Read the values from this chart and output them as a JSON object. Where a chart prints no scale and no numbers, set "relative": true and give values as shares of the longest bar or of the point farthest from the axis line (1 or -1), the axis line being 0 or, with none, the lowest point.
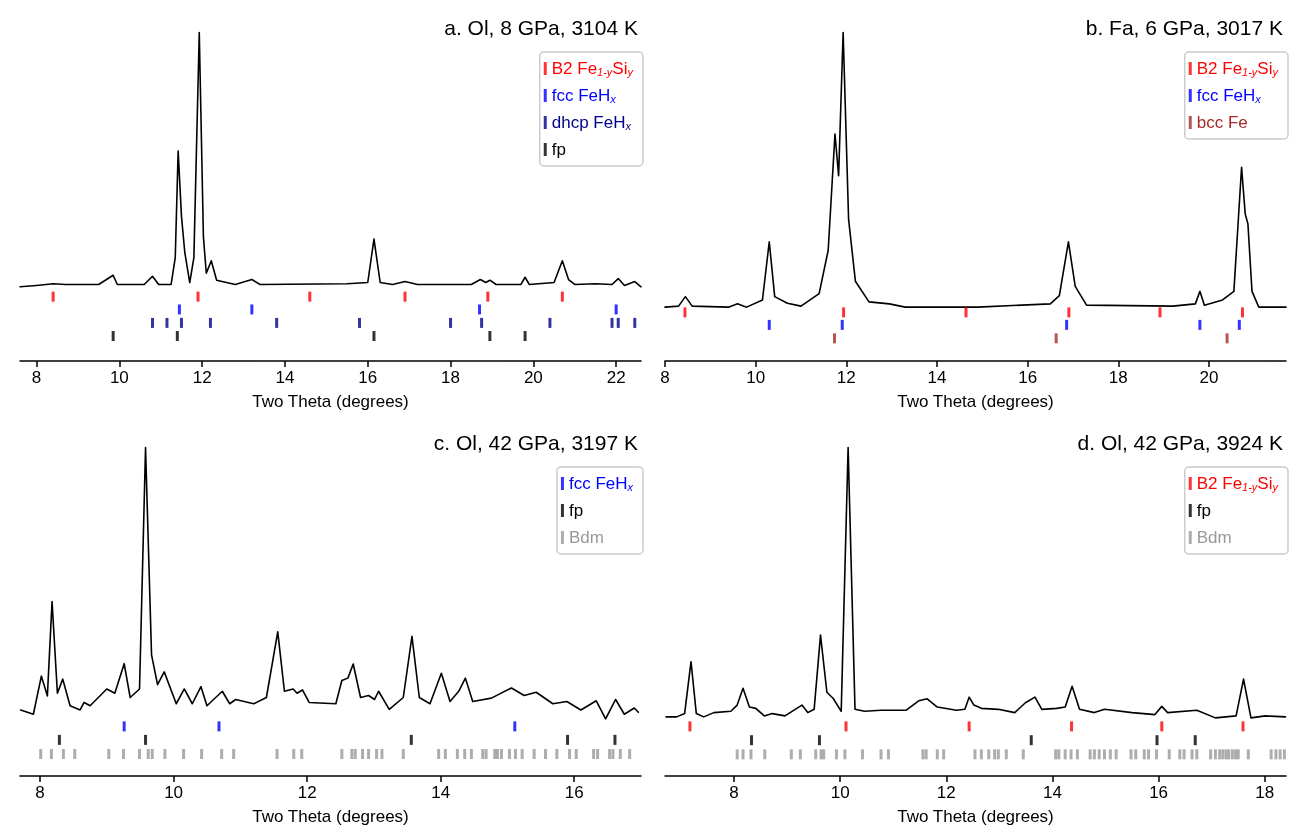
{
  "chart_data": [
    {
      "type": "line",
      "title": "a. Ol, 8 GPa, 3104 K",
      "xlabel": "Two Theta (degrees)",
      "relative": true,
      "xlim": [
        7.6,
        22.6
      ],
      "xticks": [
        8,
        10,
        12,
        14,
        16,
        18,
        20,
        22
      ],
      "legend": "top right",
      "tick_labels": "x",
      "series": [
        {
          "color": "#000000",
          "marker": "none",
          "x": [
            7.6,
            8.0,
            8.4,
            8.7,
            9.5,
            9.85,
            9.95,
            10.6,
            10.8,
            10.95,
            11.25,
            11.35,
            11.42,
            11.5,
            11.58,
            11.7,
            11.8,
            11.93,
            12.03,
            12.1,
            12.22,
            12.35,
            12.8,
            13.2,
            13.4,
            15.5,
            16.0,
            16.15,
            16.3,
            16.6,
            16.9,
            17.2,
            18.5,
            18.72,
            18.85,
            18.95,
            19.1,
            19.7,
            19.8,
            19.9,
            20.5,
            20.7,
            20.85,
            21.0,
            21.5,
            21.9,
            22.05,
            22.2,
            22.45,
            22.6
          ],
          "values": [
            0.226,
            0.23,
            0.235,
            0.233,
            0.233,
            0.261,
            0.233,
            0.233,
            0.258,
            0.233,
            0.233,
            0.315,
            0.639,
            0.441,
            0.331,
            0.239,
            0.315,
            1.0,
            0.378,
            0.267,
            0.305,
            0.246,
            0.233,
            0.248,
            0.233,
            0.235,
            0.239,
            0.371,
            0.239,
            0.233,
            0.242,
            0.233,
            0.233,
            0.248,
            0.239,
            0.246,
            0.233,
            0.233,
            0.255,
            0.233,
            0.239,
            0.305,
            0.248,
            0.233,
            0.235,
            0.233,
            0.251,
            0.23,
            0.242,
            0.226
          ]
        },
        {
          "type": "scatter",
          "name": "B2 Fe$_{1-y}$Si$_{y}$",
          "color": "#ff0000",
          "x": [
            8.4,
            11.9,
            14.6,
            16.9,
            18.9,
            20.7
          ],
          "values": [
            0.196,
            0.196,
            0.196,
            0.196,
            0.196,
            0.196
          ]
        },
        {
          "type": "scatter",
          "name": "fcc FeH$_{x}$",
          "color": "#0000ff",
          "x": [
            11.45,
            13.2,
            18.7,
            22.0
          ],
          "values": [
            0.157,
            0.157,
            0.157,
            0.157
          ]
        },
        {
          "type": "scatter",
          "name": "dhcp FeH$_{x}$",
          "color": "#00008b",
          "x": [
            10.8,
            11.15,
            11.5,
            12.2,
            13.8,
            15.8,
            18.0,
            18.75,
            20.4,
            21.9,
            22.05,
            22.45
          ],
          "values": [
            0.116,
            0.116,
            0.116,
            0.116,
            0.116,
            0.116,
            0.116,
            0.116,
            0.116,
            0.116,
            0.116,
            0.116
          ]
        },
        {
          "type": "scatter",
          "name": "fp",
          "color": "#000000",
          "x": [
            9.85,
            11.4,
            16.15,
            18.95,
            19.8
          ],
          "values": [
            0.076,
            0.076,
            0.076,
            0.076,
            0.076
          ]
        }
      ]
    },
    {
      "type": "line",
      "title": "b. Fa, 6 GPa, 3017 K",
      "xlabel": "Two Theta (degrees)",
      "relative": true,
      "xlim": [
        8,
        21.7
      ],
      "xticks": [
        8,
        10,
        12,
        14,
        16,
        18,
        20
      ],
      "legend": "top right",
      "tick_labels": "x",
      "series": [
        {
          "color": "#000000",
          "marker": "none",
          "x": [
            8.0,
            8.3,
            8.45,
            8.6,
            9.4,
            9.6,
            9.8,
            10.15,
            10.3,
            10.42,
            10.7,
            11.0,
            11.4,
            11.6,
            11.75,
            11.83,
            11.93,
            12.05,
            12.2,
            12.5,
            12.95,
            13.3,
            14.9,
            16.5,
            16.7,
            16.9,
            17.05,
            17.3,
            19.2,
            19.7,
            19.8,
            19.9,
            20.3,
            20.55,
            20.72,
            20.8,
            20.86,
            20.95,
            21.1,
            21.7
          ],
          "values": [
            0.164,
            0.167,
            0.196,
            0.167,
            0.164,
            0.174,
            0.164,
            0.186,
            0.363,
            0.196,
            0.176,
            0.167,
            0.205,
            0.337,
            0.691,
            0.564,
            1.0,
            0.432,
            0.243,
            0.18,
            0.174,
            0.164,
            0.164,
            0.174,
            0.199,
            0.363,
            0.227,
            0.17,
            0.167,
            0.174,
            0.212,
            0.17,
            0.186,
            0.212,
            0.59,
            0.448,
            0.417,
            0.212,
            0.164,
            0.164
          ]
        },
        {
          "type": "scatter",
          "name": "B2 Fe$_{1-y}$Si$_{y}$",
          "color": "#ff0000",
          "x": [
            8.44,
            11.94,
            14.64,
            16.91,
            18.92,
            20.74
          ],
          "values": [
            0.148,
            0.148,
            0.148,
            0.148,
            0.148,
            0.148
          ]
        },
        {
          "type": "scatter",
          "name": "fcc FeH$_{x}$",
          "color": "#0000ff",
          "x": [
            10.3,
            11.91,
            16.86,
            19.8,
            20.67
          ],
          "values": [
            0.11,
            0.11,
            0.11,
            0.11,
            0.11
          ]
        },
        {
          "type": "scatter",
          "name": "bcc Fe",
          "color": "#a52a2a",
          "x": [
            11.74,
            16.63,
            20.4
          ],
          "values": [
            0.069,
            0.069,
            0.069
          ]
        }
      ]
    },
    {
      "type": "line",
      "title": "c. Ol, 42 GPa, 3197 K",
      "xlabel": "Two Theta (degrees)",
      "relative": true,
      "xlim": [
        7.7,
        17.0
      ],
      "xticks": [
        8,
        10,
        12,
        14,
        16
      ],
      "legend": "top right",
      "tick_labels": "x",
      "series": [
        {
          "color": "#000000",
          "marker": "none",
          "x": [
            7.71,
            7.9,
            8.02,
            8.11,
            8.18,
            8.26,
            8.34,
            8.45,
            8.6,
            8.66,
            8.75,
            9.0,
            9.12,
            9.26,
            9.35,
            9.49,
            9.58,
            9.67,
            9.76,
            9.86,
            10.04,
            10.16,
            10.28,
            10.41,
            10.5,
            10.73,
            10.84,
            10.93,
            11.2,
            11.39,
            11.56,
            11.66,
            11.79,
            11.85,
            11.93,
            12.03,
            12.43,
            12.52,
            12.61,
            12.69,
            12.8,
            12.92,
            13.01,
            13.07,
            13.23,
            13.44,
            13.57,
            13.68,
            13.84,
            14.01,
            14.14,
            14.27,
            14.37,
            14.48,
            14.76,
            15.06,
            15.25,
            15.43,
            15.68,
            15.89,
            16.1,
            16.33,
            16.47,
            16.62,
            16.75,
            16.9,
            16.96
          ],
          "values": [
            0.201,
            0.188,
            0.304,
            0.244,
            0.531,
            0.252,
            0.295,
            0.214,
            0.201,
            0.224,
            0.214,
            0.265,
            0.252,
            0.342,
            0.239,
            0.265,
            1.0,
            0.369,
            0.278,
            0.317,
            0.22,
            0.265,
            0.22,
            0.272,
            0.214,
            0.258,
            0.22,
            0.233,
            0.22,
            0.239,
            0.439,
            0.258,
            0.265,
            0.252,
            0.262,
            0.224,
            0.22,
            0.291,
            0.298,
            0.341,
            0.239,
            0.245,
            0.233,
            0.258,
            0.203,
            0.239,
            0.425,
            0.239,
            0.22,
            0.313,
            0.227,
            0.258,
            0.298,
            0.227,
            0.237,
            0.268,
            0.245,
            0.255,
            0.22,
            0.227,
            0.201,
            0.229,
            0.174,
            0.233,
            0.188,
            0.207,
            0.194
          ]
        },
        {
          "type": "scatter",
          "name": "fcc FeH$_{x}$",
          "color": "#0000ff",
          "x": [
            9.26,
            10.68,
            15.11
          ],
          "values": [
            0.151,
            0.151,
            0.151
          ]
        },
        {
          "type": "scatter",
          "name": "fp",
          "color": "#000000",
          "x": [
            8.29,
            9.58,
            13.56,
            15.9,
            16.61
          ],
          "values": [
            0.11,
            0.11,
            0.11,
            0.11,
            0.11
          ]
        },
        {
          "type": "scatter",
          "name": "Bdm",
          "color": "#999999",
          "x": [
            8.01,
            8.17,
            8.35,
            8.52,
            9.03,
            9.25,
            9.49,
            9.62,
            9.68,
            9.87,
            10.15,
            10.42,
            10.72,
            10.9,
            11.55,
            11.8,
            11.92,
            12.52,
            12.67,
            12.72,
            12.83,
            12.92,
            13.04,
            13.12,
            13.44,
            13.97,
            14.07,
            14.25,
            14.36,
            14.46,
            14.63,
            14.68,
            14.81,
            14.85,
            14.91,
            15.03,
            15.12,
            15.22,
            15.4,
            15.57,
            15.74,
            15.93,
            16.03,
            16.29,
            16.35,
            16.53,
            16.58,
            16.69,
            16.83
          ],
          "values": [
            0.067,
            0.067,
            0.067,
            0.067,
            0.067,
            0.067,
            0.067,
            0.067,
            0.067,
            0.067,
            0.067,
            0.067,
            0.067,
            0.067,
            0.067,
            0.067,
            0.067,
            0.067,
            0.067,
            0.067,
            0.067,
            0.067,
            0.067,
            0.067,
            0.067,
            0.067,
            0.067,
            0.067,
            0.067,
            0.067,
            0.067,
            0.067,
            0.067,
            0.067,
            0.067,
            0.067,
            0.067,
            0.067,
            0.067,
            0.067,
            0.067,
            0.067,
            0.067,
            0.067,
            0.067,
            0.067,
            0.067,
            0.067,
            0.067
          ]
        }
      ]
    },
    {
      "type": "line",
      "title": "d. Ol, 42 GPa, 3924 K",
      "xlabel": "Two Theta (degrees)",
      "relative": true,
      "xlim": [
        6.7,
        18.4
      ],
      "xticks": [
        8,
        10,
        12,
        14,
        16,
        18
      ],
      "legend": "top right",
      "tick_labels": "x",
      "series": [
        {
          "color": "#000000",
          "marker": "none",
          "x": [
            6.72,
            6.92,
            7.07,
            7.19,
            7.29,
            7.43,
            7.62,
            7.94,
            8.06,
            8.17,
            8.29,
            8.41,
            8.57,
            8.72,
            8.96,
            9.28,
            9.39,
            9.51,
            9.63,
            9.75,
            9.87,
            10.02,
            10.15,
            10.28,
            10.46,
            10.77,
            11.24,
            11.48,
            11.64,
            11.83,
            12.19,
            12.35,
            12.43,
            12.52,
            12.66,
            12.98,
            13.29,
            13.49,
            13.67,
            13.8,
            14.08,
            14.24,
            14.37,
            14.51,
            14.79,
            14.98,
            15.5,
            15.93,
            16.06,
            16.17,
            16.72,
            17.07,
            17.46,
            17.6,
            17.74,
            18.01,
            18.39
          ],
          "values": [
            0.18,
            0.18,
            0.19,
            0.348,
            0.19,
            0.18,
            0.193,
            0.197,
            0.216,
            0.267,
            0.21,
            0.206,
            0.183,
            0.19,
            0.183,
            0.216,
            0.193,
            0.203,
            0.429,
            0.255,
            0.236,
            0.197,
            1.0,
            0.203,
            0.197,
            0.2,
            0.2,
            0.229,
            0.235,
            0.21,
            0.2,
            0.203,
            0.24,
            0.216,
            0.206,
            0.203,
            0.193,
            0.223,
            0.24,
            0.203,
            0.206,
            0.21,
            0.273,
            0.203,
            0.193,
            0.203,
            0.193,
            0.187,
            0.212,
            0.193,
            0.2,
            0.177,
            0.183,
            0.295,
            0.177,
            0.183,
            0.18
          ]
        },
        {
          "type": "scatter",
          "name": "B2 Fe$_{1-y}$Si$_{y}$",
          "color": "#ff0000",
          "x": [
            7.17,
            10.11,
            12.43,
            14.36,
            16.06,
            17.59
          ],
          "values": [
            0.151,
            0.151,
            0.151,
            0.151,
            0.151,
            0.151
          ]
        },
        {
          "type": "scatter",
          "name": "fp",
          "color": "#000000",
          "x": [
            8.33,
            9.61,
            13.6,
            15.97,
            16.69
          ],
          "values": [
            0.109,
            0.109,
            0.109,
            0.109,
            0.109
          ]
        },
        {
          "type": "scatter",
          "name": "Bdm",
          "color": "#999999",
          "x": [
            8.06,
            8.17,
            8.32,
            8.58,
            9.08,
            9.25,
            9.54,
            9.64,
            9.69,
            9.93,
            10.09,
            10.42,
            10.77,
            10.91,
            11.56,
            11.62,
            11.83,
            11.95,
            12.54,
            12.66,
            12.8,
            12.91,
            12.98,
            13.13,
            13.45,
            14.06,
            14.12,
            14.24,
            14.35,
            14.47,
            14.71,
            14.79,
            14.88,
            14.98,
            15.09,
            15.2,
            15.48,
            15.57,
            15.73,
            15.81,
            15.96,
            16.2,
            16.4,
            16.48,
            16.63,
            16.72,
            16.98,
            17.07,
            17.15,
            17.21,
            17.27,
            17.32,
            17.39,
            17.45,
            17.5,
            17.69,
            18.12,
            18.21,
            18.29,
            18.37
          ],
          "values": [
            0.066,
            0.066,
            0.066,
            0.066,
            0.066,
            0.066,
            0.066,
            0.066,
            0.066,
            0.066,
            0.066,
            0.066,
            0.066,
            0.066,
            0.066,
            0.066,
            0.066,
            0.066,
            0.066,
            0.066,
            0.066,
            0.066,
            0.066,
            0.066,
            0.066,
            0.066,
            0.066,
            0.066,
            0.066,
            0.066,
            0.066,
            0.066,
            0.066,
            0.066,
            0.066,
            0.066,
            0.066,
            0.066,
            0.066,
            0.066,
            0.066,
            0.066,
            0.066,
            0.066,
            0.066,
            0.066,
            0.066,
            0.066,
            0.066,
            0.066,
            0.066,
            0.066,
            0.066,
            0.066,
            0.066,
            0.066,
            0.066,
            0.066,
            0.066,
            0.066
          ]
        }
      ]
    }
  ]
}
